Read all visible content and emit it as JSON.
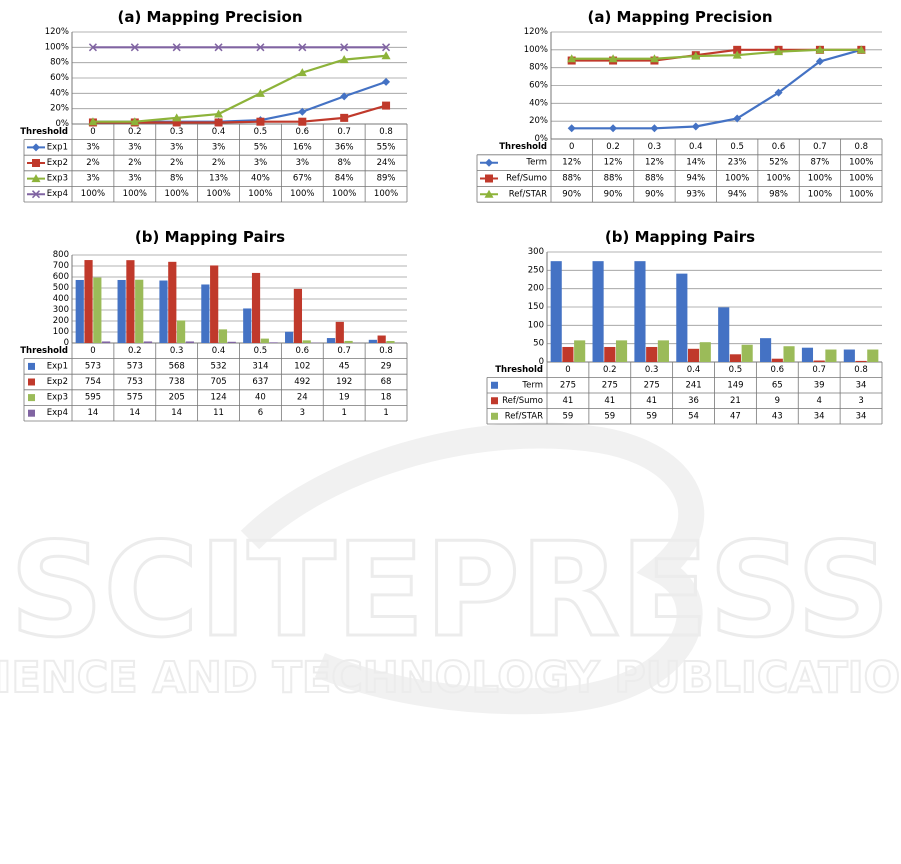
{
  "watermark": {
    "brand": "SCITEPRESS",
    "tagline": "SCIENCE AND TECHNOLOGY PUBLICATIONS"
  },
  "chart_data": [
    {
      "id": "p1",
      "type": "line",
      "title": "(a) Mapping Precision",
      "table_header": "Threshold",
      "x": [
        "0",
        "0.2",
        "0.3",
        "0.4",
        "0.5",
        "0.6",
        "0.7",
        "0.8"
      ],
      "ylim": [
        0,
        120
      ],
      "yticks": [
        0,
        20,
        40,
        60,
        80,
        100,
        120
      ],
      "ytick_suffix": "%",
      "grid": true,
      "series": [
        {
          "name": "Exp1",
          "color": "#4472C4",
          "marker": "diamond",
          "values": [
            3,
            3,
            3,
            3,
            5,
            16,
            36,
            55
          ],
          "labels": [
            "3%",
            "3%",
            "3%",
            "3%",
            "5%",
            "16%",
            "36%",
            "55%"
          ]
        },
        {
          "name": "Exp2",
          "color": "#C0392B",
          "marker": "square",
          "values": [
            2,
            2,
            2,
            2,
            3,
            3,
            8,
            24
          ],
          "labels": [
            "2%",
            "2%",
            "2%",
            "2%",
            "3%",
            "3%",
            "8%",
            "24%"
          ]
        },
        {
          "name": "Exp3",
          "color": "#8DB33A",
          "marker": "triangle",
          "values": [
            3,
            3,
            8,
            13,
            40,
            67,
            84,
            89
          ],
          "labels": [
            "3%",
            "3%",
            "8%",
            "13%",
            "40%",
            "67%",
            "84%",
            "89%"
          ]
        },
        {
          "name": "Exp4",
          "color": "#8064A2",
          "marker": "x",
          "values": [
            100,
            100,
            100,
            100,
            100,
            100,
            100,
            100
          ],
          "labels": [
            "100%",
            "100%",
            "100%",
            "100%",
            "100%",
            "100%",
            "100%",
            "100%"
          ]
        }
      ]
    },
    {
      "id": "p2",
      "type": "line",
      "title": "(a) Mapping Precision",
      "table_header": "Threshold",
      "x": [
        "0",
        "0.2",
        "0.3",
        "0.4",
        "0.5",
        "0.6",
        "0.7",
        "0.8"
      ],
      "ylim": [
        0,
        120
      ],
      "yticks": [
        0,
        20,
        40,
        60,
        80,
        100,
        120
      ],
      "ytick_suffix": "%",
      "grid": true,
      "series": [
        {
          "name": "Term",
          "color": "#4472C4",
          "marker": "diamond",
          "values": [
            12,
            12,
            12,
            14,
            23,
            52,
            87,
            100
          ],
          "labels": [
            "12%",
            "12%",
            "12%",
            "14%",
            "23%",
            "52%",
            "87%",
            "100%"
          ]
        },
        {
          "name": "Ref/Sumo",
          "color": "#C0392B",
          "marker": "square",
          "values": [
            88,
            88,
            88,
            94,
            100,
            100,
            100,
            100
          ],
          "labels": [
            "88%",
            "88%",
            "88%",
            "94%",
            "100%",
            "100%",
            "100%",
            "100%"
          ]
        },
        {
          "name": "Ref/STAR",
          "color": "#8DB33A",
          "marker": "triangle",
          "values": [
            90,
            90,
            90,
            93,
            94,
            98,
            100,
            100
          ],
          "labels": [
            "90%",
            "90%",
            "90%",
            "93%",
            "94%",
            "98%",
            "100%",
            "100%"
          ]
        }
      ]
    },
    {
      "id": "p3",
      "type": "bar",
      "title": "(b) Mapping Pairs",
      "table_header": "Threshold",
      "categories": [
        "0",
        "0.2",
        "0.3",
        "0.4",
        "0.5",
        "0.6",
        "0.7",
        "0.8"
      ],
      "ylim": [
        0,
        800
      ],
      "yticks": [
        0,
        100,
        200,
        300,
        400,
        500,
        600,
        700,
        800
      ],
      "ytick_suffix": "",
      "grid": true,
      "series": [
        {
          "name": "Exp1",
          "color": "#4472C4",
          "values": [
            573,
            573,
            568,
            532,
            314,
            102,
            45,
            29
          ]
        },
        {
          "name": "Exp2",
          "color": "#C0392B",
          "values": [
            754,
            753,
            738,
            705,
            637,
            492,
            192,
            68
          ]
        },
        {
          "name": "Exp3",
          "color": "#9BBB59",
          "values": [
            595,
            575,
            205,
            124,
            40,
            24,
            19,
            18
          ]
        },
        {
          "name": "Exp4",
          "color": "#8064A2",
          "values": [
            14,
            14,
            14,
            11,
            6,
            3,
            1,
            1
          ]
        }
      ]
    },
    {
      "id": "p4",
      "type": "bar",
      "title": "(b) Mapping Pairs",
      "table_header": "Threshold",
      "categories": [
        "0",
        "0.2",
        "0.3",
        "0.4",
        "0.5",
        "0.6",
        "0.7",
        "0.8"
      ],
      "ylim": [
        0,
        300
      ],
      "yticks": [
        0,
        50,
        100,
        150,
        200,
        250,
        300
      ],
      "ytick_suffix": "",
      "grid": true,
      "series": [
        {
          "name": "Term",
          "color": "#4472C4",
          "values": [
            275,
            275,
            275,
            241,
            149,
            65,
            39,
            34
          ]
        },
        {
          "name": "Ref/Sumo",
          "color": "#C0392B",
          "values": [
            41,
            41,
            41,
            36,
            21,
            9,
            4,
            3
          ]
        },
        {
          "name": "Ref/STAR",
          "color": "#9BBB59",
          "values": [
            59,
            59,
            59,
            54,
            47,
            43,
            34,
            34
          ]
        }
      ]
    }
  ]
}
